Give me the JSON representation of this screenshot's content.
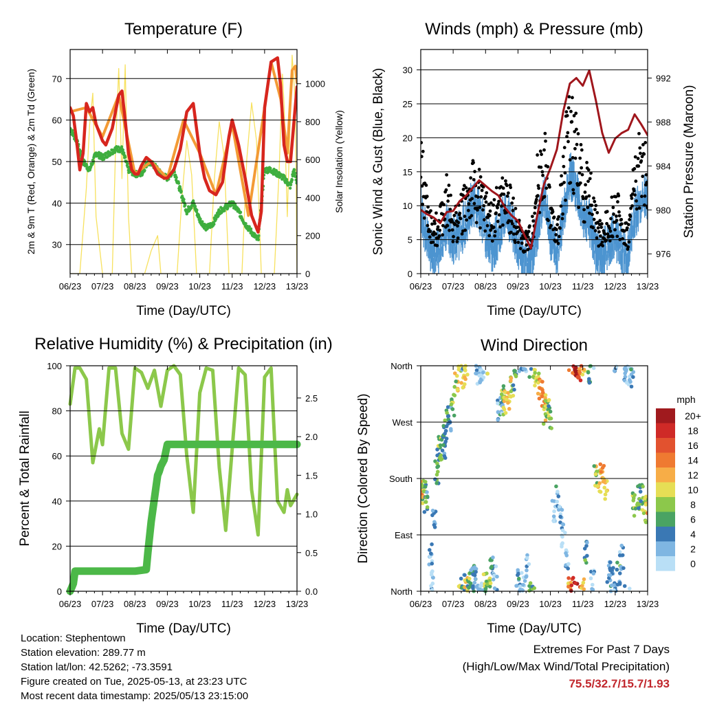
{
  "colors": {
    "temp_2m": "#d7261e",
    "temp_9m": "#f39b36",
    "dewpoint": "#3fae3f",
    "solar": "#f7e15e",
    "wind": "#4d94d0",
    "gust": "#000000",
    "pressure": "#a0161c",
    "rh": "#8cc84b",
    "precip": "#4cb848",
    "extremes": "#c1272d"
  },
  "x_ticks": [
    "06/23",
    "07/23",
    "08/23",
    "09/23",
    "10/23",
    "11/23",
    "12/23",
    "13/23"
  ],
  "xlabel": "Time (Day/UTC)",
  "chart_data": [
    {
      "type": "line",
      "title": "Temperature (F)",
      "xlabel": "Time (Day/UTC)",
      "ylabel": "2m & 9m T (Red, Orange) & 2m Td (Green)",
      "ylabel_right": "Solar Insolation (Yellow)",
      "ylim": [
        23,
        77
      ],
      "ylim_right": [
        0,
        1180
      ],
      "yticks": [
        30,
        40,
        50,
        60,
        70
      ],
      "yticks_right": [
        0,
        200,
        400,
        600,
        800,
        1000
      ],
      "x_days": [
        0,
        7
      ],
      "grid": true,
      "series": [
        {
          "name": "2m T",
          "axis": "left",
          "x": [
            0,
            0.1,
            0.2,
            0.3,
            0.4,
            0.5,
            0.6,
            0.7,
            0.8,
            0.9,
            1.0,
            1.1,
            1.3,
            1.5,
            1.6,
            1.7,
            1.8,
            1.9,
            2.0,
            2.1,
            2.2,
            2.35,
            2.5,
            2.7,
            2.9,
            3.0,
            3.2,
            3.4,
            3.6,
            3.8,
            4.0,
            4.15,
            4.3,
            4.5,
            4.7,
            4.9,
            5.0,
            5.2,
            5.4,
            5.6,
            5.8,
            5.9,
            6.0,
            6.2,
            6.4,
            6.5,
            6.6,
            6.7,
            6.8,
            7.0
          ],
          "y": [
            63,
            61,
            55,
            48,
            52,
            64,
            62,
            63,
            59,
            57,
            55,
            54,
            58,
            66,
            67,
            60,
            52,
            48,
            47,
            47,
            49,
            51,
            50,
            47,
            46,
            46,
            48,
            53,
            62,
            64,
            52,
            46,
            43,
            42,
            45,
            56,
            60,
            54,
            46,
            37,
            33,
            38,
            63,
            74,
            75,
            68,
            54,
            50,
            50,
            68
          ]
        },
        {
          "name": "9m T",
          "axis": "left",
          "x": [
            0,
            0.5,
            1.0,
            1.5,
            2.0,
            2.5,
            3.0,
            3.5,
            4.0,
            4.5,
            5.0,
            5.5,
            6.0,
            6.2,
            6.5,
            6.7,
            6.85,
            6.95,
            7.0
          ],
          "y": [
            62,
            63,
            56,
            66,
            47,
            50,
            46,
            60,
            52,
            42,
            59,
            37,
            63,
            74,
            65,
            52,
            72,
            73,
            69
          ]
        },
        {
          "name": "2m Td",
          "axis": "left",
          "x": [
            0,
            0.2,
            0.4,
            0.6,
            0.8,
            1.0,
            1.2,
            1.4,
            1.6,
            1.8,
            2.0,
            2.2,
            2.4,
            2.6,
            2.8,
            3.0,
            3.2,
            3.4,
            3.6,
            3.8,
            4.0,
            4.2,
            4.4,
            4.6,
            4.8,
            5.0,
            5.2,
            5.4,
            5.6,
            5.8,
            6.0,
            6.2,
            6.4,
            6.6,
            6.8,
            6.9,
            7.0
          ],
          "y": [
            58,
            55,
            50,
            48,
            52,
            51,
            52,
            53,
            53,
            48,
            47,
            47,
            50,
            49,
            47,
            46,
            48,
            43,
            38,
            40,
            36,
            34,
            35,
            38,
            39,
            40,
            38,
            35,
            33,
            31,
            48,
            48,
            47,
            46,
            44,
            48,
            45
          ]
        },
        {
          "name": "Solar",
          "axis": "right",
          "x": [
            0,
            0.3,
            0.5,
            0.6,
            0.7,
            0.8,
            1.0,
            1.3,
            1.4,
            1.5,
            1.6,
            1.7,
            1.8,
            1.9,
            2.0,
            2.3,
            2.5,
            2.7,
            2.8,
            3.3,
            3.45,
            3.6,
            3.75,
            3.9,
            4.3,
            4.45,
            4.6,
            4.75,
            4.9,
            5.3,
            5.45,
            5.6,
            5.75,
            5.9,
            6.3,
            6.45,
            6.55,
            6.6,
            6.7,
            6.85,
            6.95,
            7.0
          ],
          "y": [
            0,
            0,
            450,
            780,
            950,
            300,
            0,
            0,
            650,
            1080,
            500,
            1100,
            300,
            0,
            0,
            0,
            120,
            200,
            0,
            0,
            400,
            700,
            520,
            0,
            0,
            500,
            800,
            620,
            0,
            0,
            600,
            900,
            700,
            0,
            0,
            550,
            1050,
            900,
            300,
            1150,
            900,
            0
          ]
        }
      ]
    },
    {
      "type": "line",
      "title": "Winds (mph) & Pressure (mb)",
      "xlabel": "Time (Day/UTC)",
      "ylabel": "Sonic Wind & Gust (Blue, Black)",
      "ylabel_right": "Station Pressure (Maroon)",
      "ylim": [
        0,
        33
      ],
      "ylim_right": [
        974.2,
        994.6
      ],
      "yticks": [
        0,
        5,
        10,
        15,
        20,
        25,
        30
      ],
      "yticks_right": [
        976,
        980,
        984,
        988,
        992
      ],
      "x_days": [
        0,
        7
      ],
      "grid": true,
      "series": [
        {
          "name": "Sonic Wind",
          "axis": "left",
          "x": [
            0,
            0.2,
            0.4,
            0.6,
            0.8,
            1.0,
            1.2,
            1.4,
            1.6,
            1.8,
            2.0,
            2.2,
            2.4,
            2.6,
            2.8,
            3.0,
            3.2,
            3.4,
            3.6,
            3.8,
            4.0,
            4.2,
            4.4,
            4.6,
            4.8,
            5.0,
            5.2,
            5.4,
            5.6,
            5.8,
            6.0,
            6.2,
            6.4,
            6.6,
            6.8,
            7.0
          ],
          "y": [
            10,
            5,
            3,
            4,
            7,
            5,
            6,
            8,
            11,
            10,
            6,
            4,
            6,
            9,
            8,
            4,
            3,
            2,
            7,
            12,
            6,
            3,
            9,
            15,
            13,
            9,
            8,
            4,
            3,
            5,
            6,
            4,
            3,
            9,
            11,
            12
          ]
        },
        {
          "name": "Gust",
          "axis": "left",
          "x": [
            0,
            0.2,
            0.4,
            0.6,
            0.8,
            1.0,
            1.2,
            1.4,
            1.6,
            1.8,
            2.0,
            2.2,
            2.4,
            2.6,
            2.8,
            3.0,
            3.2,
            3.4,
            3.6,
            3.8,
            4.0,
            4.2,
            4.4,
            4.6,
            4.8,
            5.0,
            5.2,
            5.4,
            5.6,
            5.8,
            6.0,
            6.2,
            6.4,
            6.6,
            6.8,
            7.0
          ],
          "y": [
            20,
            12,
            7,
            11,
            15,
            9,
            11,
            14,
            16,
            15,
            12,
            10,
            13,
            14,
            12,
            8,
            6,
            7,
            17,
            22,
            12,
            6,
            20,
            28,
            23,
            17,
            16,
            10,
            7,
            10,
            13,
            9,
            7,
            18,
            21,
            17
          ]
        },
        {
          "name": "Station Pressure",
          "axis": "right",
          "x": [
            0,
            0.2,
            0.4,
            0.6,
            0.8,
            1.0,
            1.2,
            1.4,
            1.6,
            1.8,
            2.0,
            2.2,
            2.4,
            2.6,
            2.8,
            3.0,
            3.2,
            3.4,
            3.6,
            3.8,
            4.0,
            4.2,
            4.4,
            4.6,
            4.8,
            5.0,
            5.2,
            5.4,
            5.6,
            5.8,
            6.0,
            6.2,
            6.4,
            6.6,
            6.8,
            7.0
          ],
          "y": [
            980.0,
            979.6,
            979.3,
            978.8,
            979.8,
            979.9,
            980.8,
            981.3,
            982.0,
            982.7,
            982.2,
            981.7,
            981.3,
            980.2,
            979.5,
            979.0,
            977.7,
            976.5,
            979.6,
            982.3,
            983.8,
            985.5,
            989.0,
            991.5,
            992.0,
            991.3,
            992.7,
            990.0,
            987.0,
            985.2,
            986.5,
            987.0,
            987.3,
            988.7,
            987.8,
            986.8
          ]
        }
      ]
    },
    {
      "type": "line",
      "title": "Relative Humidity (%) & Precipitation (in)",
      "xlabel": "Time (Day/UTC)",
      "ylabel": "Percent & Total Rainfall",
      "ylim": [
        0,
        100
      ],
      "ylim_right": [
        0,
        2.917
      ],
      "yticks": [
        0,
        20,
        40,
        60,
        80,
        100
      ],
      "yticks_right": [
        0.0,
        0.5,
        1.0,
        1.5,
        2.0,
        2.5
      ],
      "x_days": [
        0,
        7
      ],
      "grid": true,
      "series": [
        {
          "name": "Relative Humidity",
          "axis": "left",
          "x": [
            0,
            0.15,
            0.3,
            0.5,
            0.7,
            0.9,
            1.0,
            1.2,
            1.4,
            1.6,
            1.8,
            2.0,
            2.2,
            2.4,
            2.6,
            2.8,
            3.0,
            3.2,
            3.4,
            3.6,
            3.8,
            4.0,
            4.2,
            4.4,
            4.6,
            4.8,
            5.0,
            5.2,
            5.4,
            5.6,
            5.8,
            6.0,
            6.2,
            6.4,
            6.6,
            6.7,
            6.8,
            7.0
          ],
          "y": [
            83,
            99,
            99,
            94,
            57,
            72,
            65,
            99,
            99,
            70,
            63,
            99,
            97,
            90,
            98,
            82,
            98,
            100,
            96,
            60,
            35,
            88,
            99,
            98,
            55,
            27,
            63,
            99,
            96,
            45,
            25,
            95,
            99,
            40,
            35,
            45,
            38,
            43
          ]
        },
        {
          "name": "Total Precipitation",
          "axis": "right",
          "x": [
            0,
            0.05,
            0.1,
            0.15,
            1.0,
            2.0,
            2.35,
            2.4,
            2.5,
            2.6,
            2.7,
            2.75,
            2.8,
            2.9,
            3.0,
            3.2,
            4.0,
            5.0,
            6.0,
            7.0
          ],
          "y": [
            0.0,
            0.05,
            0.1,
            0.26,
            0.26,
            0.26,
            0.28,
            0.5,
            0.9,
            1.2,
            1.5,
            1.55,
            1.62,
            1.7,
            1.9,
            1.9,
            1.9,
            1.9,
            1.9,
            1.9
          ]
        }
      ]
    },
    {
      "type": "scatter",
      "title": "Wind Direction",
      "xlabel": "Time (Day/UTC)",
      "ylabel": "Direction (Colored By Speed)",
      "ylim": [
        0,
        360
      ],
      "ytick_labels": [
        "North",
        "East",
        "South",
        "West",
        "North"
      ],
      "x_days": [
        0,
        7
      ],
      "grid": true,
      "colorbar": {
        "title": "mph",
        "labels": [
          "20+",
          "18",
          "16",
          "14",
          "12",
          "10",
          "8",
          "6",
          "4",
          "2",
          "0"
        ],
        "colors": [
          "#a01a1e",
          "#cf2a27",
          "#e2522f",
          "#ef7a31",
          "#f7ad47",
          "#e6de55",
          "#8cc84b",
          "#4aa363",
          "#3a78b4",
          "#7fb6e2",
          "#b9dff6"
        ]
      },
      "series": [
        {
          "name": "Direction",
          "x": [
            0.0,
            0.05,
            0.1,
            0.15,
            0.3,
            0.35,
            0.4,
            0.5,
            0.55,
            0.6,
            0.7,
            0.75,
            0.8,
            0.9,
            1.0,
            1.1,
            1.2,
            1.3,
            1.35,
            1.4,
            1.5,
            1.6,
            1.7,
            1.75,
            1.8,
            1.85,
            1.9,
            2.0,
            2.1,
            2.2,
            2.3,
            2.4,
            2.5,
            2.55,
            2.6,
            2.7,
            2.8,
            2.9,
            3.0,
            3.1,
            3.2,
            3.3,
            3.4,
            3.5,
            3.6,
            3.7,
            3.8,
            3.85,
            3.9,
            4.0,
            4.1,
            4.2,
            4.3,
            4.4,
            4.5,
            4.6,
            4.7,
            4.8,
            4.9,
            5.0,
            5.1,
            5.2,
            5.3,
            5.4,
            5.5,
            5.6,
            5.7,
            5.8,
            5.9,
            6.0,
            6.1,
            6.2,
            6.3,
            6.4,
            6.5,
            6.6,
            6.7,
            6.8,
            6.9,
            7.0
          ],
          "y": [
            150,
            170,
            160,
            140,
            60,
            20,
            110,
            190,
            210,
            230,
            230,
            250,
            270,
            275,
            300,
            330,
            350,
            10,
            340,
            5,
            15,
            20,
            30,
            360,
            350,
            345,
            355,
            10,
            5,
            40,
            20,
            290,
            300,
            320,
            300,
            310,
            330,
            340,
            20,
            10,
            5,
            40,
            355,
            345,
            335,
            320,
            300,
            280,
            290,
            280,
            130,
            150,
            120,
            90,
            50,
            10,
            5,
            355,
            350,
            5,
            60,
            340,
            15,
            180,
            175,
            190,
            160,
            30,
            20,
            10,
            30,
            55,
            355,
            350,
            345,
            140,
            150,
            155,
            130,
            140
          ],
          "speed": [
            10,
            12,
            8,
            6,
            3,
            2,
            4,
            6,
            7,
            8,
            5,
            6,
            7,
            5,
            9,
            10,
            12,
            4,
            11,
            12,
            8,
            5,
            4,
            3,
            2,
            3,
            2,
            8,
            9,
            6,
            3,
            4,
            3,
            8,
            11,
            12,
            10,
            7,
            4,
            3,
            2,
            3,
            7,
            10,
            12,
            14,
            13,
            11,
            9,
            8,
            2,
            4,
            3,
            2,
            3,
            14,
            18,
            20,
            16,
            12,
            6,
            7,
            3,
            10,
            12,
            13,
            11,
            4,
            5,
            3,
            6,
            4,
            3,
            2,
            5,
            9,
            8,
            7,
            10,
            12
          ]
        }
      ]
    }
  ],
  "footer": {
    "location": "Location: Stephentown",
    "elevation": "Station elevation: 289.77 m",
    "latlon": "Station lat/lon: 42.5262; -73.3591",
    "created": "Figure created on Tue, 2025-05-13, at 23:23 UTC",
    "recent": "Most recent data timestamp: 2025/05/13 23:15:00",
    "extremes_title": "Extremes For Past 7 Days",
    "extremes_desc": "(High/Low/Max Wind/Total Precipitation)",
    "extremes_values": "75.5/32.7/15.7/1.93"
  }
}
